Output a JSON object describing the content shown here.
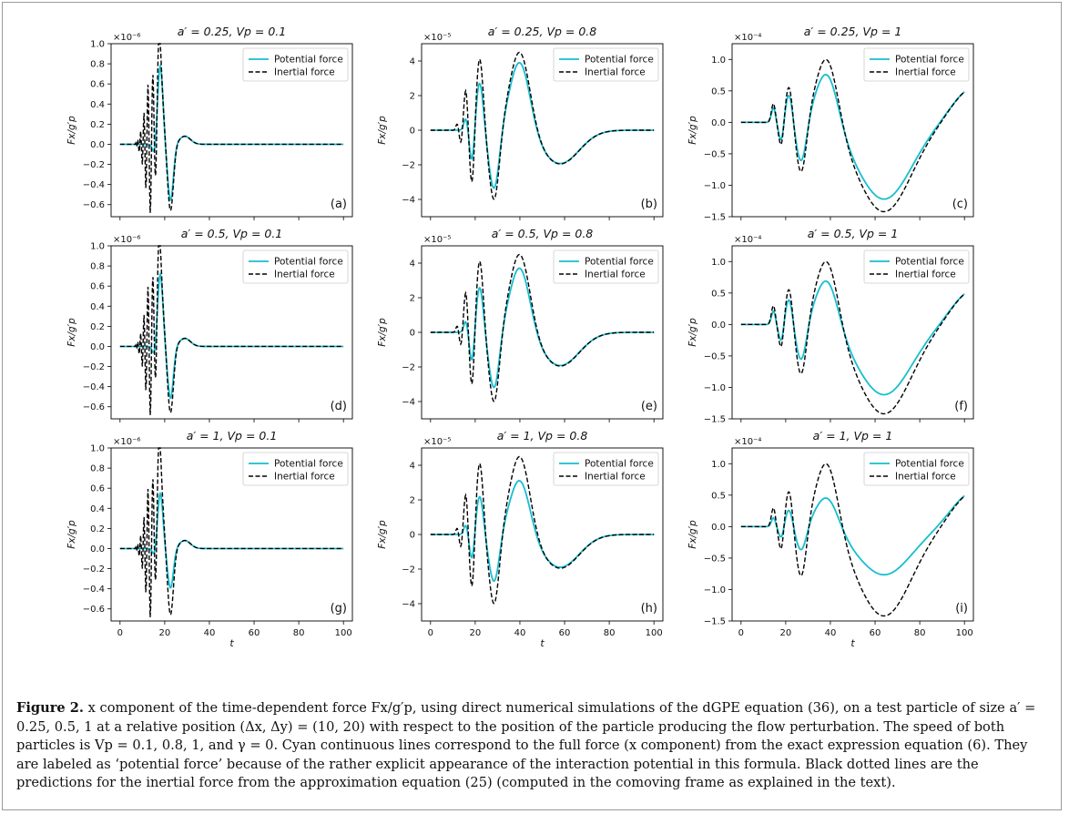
{
  "figure": {
    "legend": {
      "potential": "Potential force",
      "inertial": "Inertial force"
    },
    "colors": {
      "potential": "#17becf",
      "inertial": "#000000"
    },
    "xlabel": "t",
    "xticks": [
      "0",
      "20",
      "40",
      "60",
      "80",
      "100"
    ]
  },
  "chart_data": [
    {
      "type": "line",
      "panel": "(a)",
      "title": "a′ = 0.25, Vp = 0.1",
      "ylabel": "Fx/g′p",
      "exponent": "×10⁻⁶",
      "ylim": [
        -0.72,
        1.0
      ],
      "yticks": [
        -0.6,
        -0.4,
        -0.2,
        0.0,
        0.2,
        0.4,
        0.6,
        0.8,
        1.0
      ],
      "ytick_labels": [
        "−0.6",
        "−0.4",
        "−0.2",
        "0.0",
        "0.2",
        "0.4",
        "0.6",
        "0.8",
        "1.0"
      ],
      "profile": "A",
      "amp_inertial": 0.92,
      "amp_potential": 0.78,
      "xlim": [
        -4,
        104
      ],
      "series": [
        {
          "name": "Potential force",
          "x": [
            0,
            6,
            10,
            13,
            16,
            18,
            20,
            22.5,
            25,
            28,
            30,
            35,
            40,
            60,
            100
          ],
          "y": [
            0,
            0,
            0,
            0.05,
            0.3,
            0.78,
            0.2,
            -0.62,
            -0.2,
            0.07,
            0.08,
            0.03,
            0.01,
            0,
            0
          ]
        },
        {
          "name": "Inertial force",
          "x": [
            0,
            6,
            9,
            10,
            11,
            12,
            13,
            14,
            15,
            16,
            17,
            18,
            20,
            22.5,
            25,
            28,
            30,
            35,
            40,
            60,
            100
          ],
          "y": [
            0,
            0,
            0.1,
            -0.2,
            0.27,
            -0.38,
            0.45,
            -0.6,
            0.6,
            -0.68,
            0.65,
            0.92,
            0.2,
            -0.62,
            -0.2,
            0.07,
            0.08,
            0.03,
            0.01,
            0,
            0
          ]
        }
      ]
    },
    {
      "type": "line",
      "panel": "(b)",
      "title": "a′ = 0.25, Vp = 0.8",
      "ylabel": "Fx/g′p",
      "exponent": "×10⁻⁵",
      "ylim": [
        -5.0,
        5.0
      ],
      "yticks": [
        -4,
        -2,
        0,
        2,
        4
      ],
      "ytick_labels": [
        "−4",
        "−2",
        "0",
        "2",
        "4"
      ],
      "profile": "B",
      "amp_inertial": 4.7,
      "amp_potential": 4.1,
      "xlim": [
        -4,
        104
      ],
      "series": [
        {
          "name": "Potential force",
          "x": [
            0,
            8,
            12,
            16,
            19,
            22,
            25,
            28,
            31,
            34,
            40,
            48,
            57,
            65,
            75,
            85,
            100
          ],
          "y": [
            0,
            0,
            0.2,
            -0.3,
            -2.0,
            2.9,
            -3.5,
            -4.0,
            -1.5,
            2.2,
            4.1,
            1.0,
            -1.9,
            -1.6,
            -0.6,
            -0.1,
            0
          ]
        },
        {
          "name": "Inertial force",
          "x": [
            0,
            8,
            12,
            14,
            16,
            18,
            19,
            21,
            22,
            25,
            28,
            31,
            34,
            40,
            48,
            57,
            65,
            75,
            85,
            100
          ],
          "y": [
            0,
            0,
            0.4,
            -0.7,
            2.4,
            -2.0,
            -3.3,
            4.1,
            4.2,
            -3.5,
            -4.9,
            -1.5,
            2.2,
            4.7,
            1.0,
            -2.0,
            -1.6,
            -0.6,
            -0.1,
            0
          ]
        }
      ]
    },
    {
      "type": "line",
      "panel": "(c)",
      "title": "a′ = 0.25, Vp = 1",
      "ylabel": "Fx/g′p",
      "exponent": "×10⁻⁴",
      "ylim": [
        -1.5,
        1.25
      ],
      "yticks": [
        -1.5,
        -1.0,
        -0.5,
        0.0,
        0.5,
        1.0
      ],
      "ytick_labels": [
        "−1.5",
        "−1.0",
        "−0.5",
        "0.0",
        "0.5",
        "1.0"
      ],
      "profile": "C",
      "amp_inertial": 1.14,
      "amp_potential": 0.88,
      "xlim": [
        -4,
        104
      ],
      "series": [
        {
          "name": "Potential force",
          "x": [
            0,
            8,
            12,
            14,
            16,
            18,
            21,
            23,
            26,
            28,
            32,
            38,
            45,
            55,
            65,
            75,
            85,
            100
          ],
          "y": [
            0,
            0,
            0.05,
            0.2,
            -0.1,
            -0.2,
            0.35,
            0.1,
            -0.58,
            -0.45,
            0.3,
            0.88,
            0.4,
            -0.7,
            -1.22,
            -1.0,
            -0.3,
            0.38
          ]
        },
        {
          "name": "Inertial force",
          "x": [
            0,
            8,
            12,
            14,
            16,
            18,
            21,
            23,
            26,
            28,
            32,
            38,
            45,
            55,
            65,
            75,
            85,
            100
          ],
          "y": [
            0,
            0,
            0.1,
            0.3,
            -0.3,
            -0.4,
            0.6,
            0.2,
            -0.85,
            -0.6,
            0.4,
            1.14,
            0.5,
            -0.85,
            -1.42,
            -1.2,
            -0.4,
            0.38
          ]
        }
      ]
    },
    {
      "type": "line",
      "panel": "(d)",
      "title": "a′ = 0.5, Vp = 0.1",
      "ylabel": "Fx/g′p",
      "exponent": "×10⁻⁶",
      "ylim": [
        -0.72,
        1.0
      ],
      "yticks": [
        -0.6,
        -0.4,
        -0.2,
        0.0,
        0.2,
        0.4,
        0.6,
        0.8,
        1.0
      ],
      "ytick_labels": [
        "−0.6",
        "−0.4",
        "−0.2",
        "0.0",
        "0.2",
        "0.4",
        "0.6",
        "0.8",
        "1.0"
      ],
      "profile": "A",
      "amp_inertial": 0.92,
      "amp_potential": 0.72,
      "xlim": [
        -4,
        104
      ],
      "series": [
        {
          "name": "Potential force",
          "x": [
            0,
            6,
            10,
            13,
            16,
            18,
            20,
            22.5,
            25,
            28,
            30,
            35,
            40,
            60,
            100
          ],
          "y": [
            0,
            0,
            0,
            0.05,
            0.28,
            0.72,
            0.18,
            -0.6,
            -0.2,
            0.07,
            0.08,
            0.03,
            0.01,
            0,
            0
          ]
        },
        {
          "name": "Inertial force",
          "x": [
            0,
            6,
            9,
            10,
            11,
            12,
            13,
            14,
            15,
            16,
            17,
            18,
            20,
            22.5,
            25,
            28,
            30,
            35,
            40,
            60,
            100
          ],
          "y": [
            0,
            0,
            0.1,
            -0.2,
            0.27,
            -0.38,
            0.45,
            -0.6,
            0.6,
            -0.68,
            0.65,
            0.92,
            0.2,
            -0.62,
            -0.2,
            0.07,
            0.08,
            0.03,
            0.01,
            0,
            0
          ]
        }
      ]
    },
    {
      "type": "line",
      "panel": "(e)",
      "title": "a′ = 0.5, Vp = 0.8",
      "ylabel": "Fx/g′p",
      "exponent": "×10⁻⁵",
      "ylim": [
        -5.0,
        5.0
      ],
      "yticks": [
        -4,
        -2,
        0,
        2,
        4
      ],
      "ytick_labels": [
        "−4",
        "−2",
        "0",
        "2",
        "4"
      ],
      "profile": "B",
      "amp_inertial": 4.7,
      "amp_potential": 3.9,
      "xlim": [
        -4,
        104
      ],
      "series": [
        {
          "name": "Potential force",
          "x": [
            0,
            8,
            12,
            16,
            19,
            22,
            25,
            28,
            31,
            34,
            40,
            48,
            57,
            65,
            75,
            85,
            100
          ],
          "y": [
            0,
            0,
            0.2,
            -0.3,
            -1.7,
            2.6,
            -3.2,
            -3.7,
            -1.4,
            2.0,
            3.9,
            1.0,
            -1.8,
            -1.5,
            -0.6,
            -0.1,
            0
          ]
        },
        {
          "name": "Inertial force",
          "x": [
            0,
            8,
            12,
            14,
            16,
            18,
            19,
            21,
            22,
            25,
            28,
            31,
            34,
            40,
            48,
            57,
            65,
            75,
            85,
            100
          ],
          "y": [
            0,
            0,
            0.4,
            -0.7,
            2.4,
            -2.0,
            -3.3,
            4.1,
            4.2,
            -3.5,
            -4.9,
            -1.5,
            2.2,
            4.7,
            1.0,
            -2.0,
            -1.6,
            -0.6,
            -0.1,
            0
          ]
        }
      ]
    },
    {
      "type": "line",
      "panel": "(f)",
      "title": "a′ = 0.5, Vp = 1",
      "ylabel": "Fx/g′p",
      "exponent": "×10⁻⁴",
      "ylim": [
        -1.5,
        1.25
      ],
      "yticks": [
        -1.5,
        -1.0,
        -0.5,
        0.0,
        0.5,
        1.0
      ],
      "ytick_labels": [
        "−1.5",
        "−1.0",
        "−0.5",
        "0.0",
        "0.5",
        "1.0"
      ],
      "profile": "C",
      "amp_inertial": 1.14,
      "amp_potential": 0.8,
      "xlim": [
        -4,
        104
      ],
      "series": [
        {
          "name": "Potential force",
          "x": [
            0,
            8,
            12,
            14,
            16,
            18,
            21,
            23,
            26,
            28,
            32,
            38,
            45,
            55,
            65,
            75,
            85,
            100
          ],
          "y": [
            0,
            0,
            0.05,
            0.18,
            -0.08,
            -0.18,
            0.3,
            0.08,
            -0.5,
            -0.4,
            0.28,
            0.8,
            0.35,
            -0.65,
            -1.15,
            -0.95,
            -0.3,
            0.36
          ]
        },
        {
          "name": "Inertial force",
          "x": [
            0,
            8,
            12,
            14,
            16,
            18,
            21,
            23,
            26,
            28,
            32,
            38,
            45,
            55,
            65,
            75,
            85,
            100
          ],
          "y": [
            0,
            0,
            0.1,
            0.3,
            -0.3,
            -0.4,
            0.6,
            0.2,
            -0.85,
            -0.6,
            0.4,
            1.14,
            0.5,
            -0.85,
            -1.42,
            -1.2,
            -0.4,
            0.38
          ]
        }
      ]
    },
    {
      "type": "line",
      "panel": "(g)",
      "title": "a′ = 1, Vp = 0.1",
      "ylabel": "Fx/g′p",
      "exponent": "×10⁻⁶",
      "ylim": [
        -0.72,
        1.0
      ],
      "yticks": [
        -0.6,
        -0.4,
        -0.2,
        0.0,
        0.2,
        0.4,
        0.6,
        0.8,
        1.0
      ],
      "ytick_labels": [
        "−0.6",
        "−0.4",
        "−0.2",
        "0.0",
        "0.2",
        "0.4",
        "0.6",
        "0.8",
        "1.0"
      ],
      "profile": "A",
      "amp_inertial": 0.92,
      "amp_potential": 0.55,
      "xlim": [
        -4,
        104
      ],
      "series": [
        {
          "name": "Potential force",
          "x": [
            0,
            6,
            10,
            13,
            16,
            18,
            20,
            22.5,
            25,
            28,
            30,
            35,
            40,
            60,
            100
          ],
          "y": [
            0,
            0,
            0,
            0.03,
            0.2,
            0.55,
            0.15,
            -0.5,
            -0.18,
            0.06,
            0.07,
            0.03,
            0.01,
            0,
            0
          ]
        },
        {
          "name": "Inertial force",
          "x": [
            0,
            6,
            9,
            10,
            11,
            12,
            13,
            14,
            15,
            16,
            17,
            18,
            20,
            22.5,
            25,
            28,
            30,
            35,
            40,
            60,
            100
          ],
          "y": [
            0,
            0,
            0.1,
            -0.2,
            0.27,
            -0.38,
            0.45,
            -0.6,
            0.6,
            -0.68,
            0.65,
            0.92,
            0.2,
            -0.62,
            -0.2,
            0.07,
            0.08,
            0.03,
            0.01,
            0,
            0
          ]
        }
      ]
    },
    {
      "type": "line",
      "panel": "(h)",
      "title": "a′ = 1, Vp = 0.8",
      "ylabel": "Fx/g′p",
      "exponent": "×10⁻⁵",
      "ylim": [
        -5.0,
        5.0
      ],
      "yticks": [
        -4,
        -2,
        0,
        2,
        4
      ],
      "ytick_labels": [
        "−4",
        "−2",
        "0",
        "2",
        "4"
      ],
      "profile": "B",
      "amp_inertial": 4.7,
      "amp_potential": 3.3,
      "xlim": [
        -4,
        104
      ],
      "series": [
        {
          "name": "Potential force",
          "x": [
            0,
            8,
            12,
            16,
            19,
            22,
            25,
            28,
            31,
            34,
            40,
            48,
            57,
            65,
            75,
            85,
            100
          ],
          "y": [
            0,
            0,
            0.1,
            -0.2,
            -0.8,
            1.5,
            -1.8,
            -2.5,
            -1.0,
            1.6,
            3.3,
            0.9,
            -1.7,
            -1.4,
            -0.6,
            -0.1,
            0
          ]
        },
        {
          "name": "Inertial force",
          "x": [
            0,
            8,
            12,
            14,
            16,
            18,
            19,
            21,
            22,
            25,
            28,
            31,
            34,
            40,
            48,
            57,
            65,
            75,
            85,
            100
          ],
          "y": [
            0,
            0,
            0.4,
            -0.7,
            2.4,
            -2.0,
            -3.3,
            4.1,
            4.2,
            -3.5,
            -4.9,
            -1.5,
            2.2,
            4.7,
            1.0,
            -2.0,
            -1.6,
            -0.6,
            -0.1,
            0
          ]
        }
      ]
    },
    {
      "type": "line",
      "panel": "(i)",
      "title": "a′ = 1, Vp = 1",
      "ylabel": "Fx/g′p",
      "exponent": "×10⁻⁴",
      "ylim": [
        -1.5,
        1.25
      ],
      "yticks": [
        -1.5,
        -1.0,
        -0.5,
        0.0,
        0.5,
        1.0
      ],
      "ytick_labels": [
        "−1.5",
        "−1.0",
        "−0.5",
        "0.0",
        "0.5",
        "1.0"
      ],
      "profile": "C",
      "amp_inertial": 1.14,
      "amp_potential": 0.53,
      "xlim": [
        -4,
        104
      ],
      "series": [
        {
          "name": "Potential force",
          "x": [
            0,
            8,
            12,
            14,
            16,
            18,
            21,
            23,
            26,
            28,
            32,
            38,
            45,
            55,
            65,
            75,
            85,
            100
          ],
          "y": [
            0,
            0,
            0.03,
            0.1,
            -0.04,
            -0.08,
            0.12,
            0.02,
            -0.27,
            -0.2,
            0.15,
            0.53,
            0.22,
            -0.5,
            -0.93,
            -0.8,
            -0.28,
            0.34
          ]
        },
        {
          "name": "Inertial force",
          "x": [
            0,
            8,
            12,
            14,
            16,
            18,
            21,
            23,
            26,
            28,
            32,
            38,
            45,
            55,
            65,
            75,
            85,
            100
          ],
          "y": [
            0,
            0,
            0.1,
            0.3,
            -0.3,
            -0.4,
            0.6,
            0.2,
            -0.85,
            -0.6,
            0.4,
            1.14,
            0.5,
            -0.85,
            -1.42,
            -1.2,
            -0.4,
            0.38
          ]
        }
      ]
    }
  ],
  "caption": {
    "label": "Figure 2.",
    "text": "x component of the time-dependent force Fx/g′p, using direct numerical simulations of the dGPE equation (36), on a test particle of size a′ = 0.25, 0.5, 1 at a relative position (Δx, Δy) = (10, 20) with respect to the position of the particle producing the flow perturbation. The speed of both particles is Vp = 0.1, 0.8, 1, and γ = 0. Cyan continuous lines correspond to the full force (x component) from the exact expression equation (6). They are labeled as ‘potential force’ because of the rather explicit appearance of the interaction potential in this formula. Black dotted lines are the predictions for the inertial force from the approximation equation (25) (computed in the comoving frame as explained in the text)."
  }
}
